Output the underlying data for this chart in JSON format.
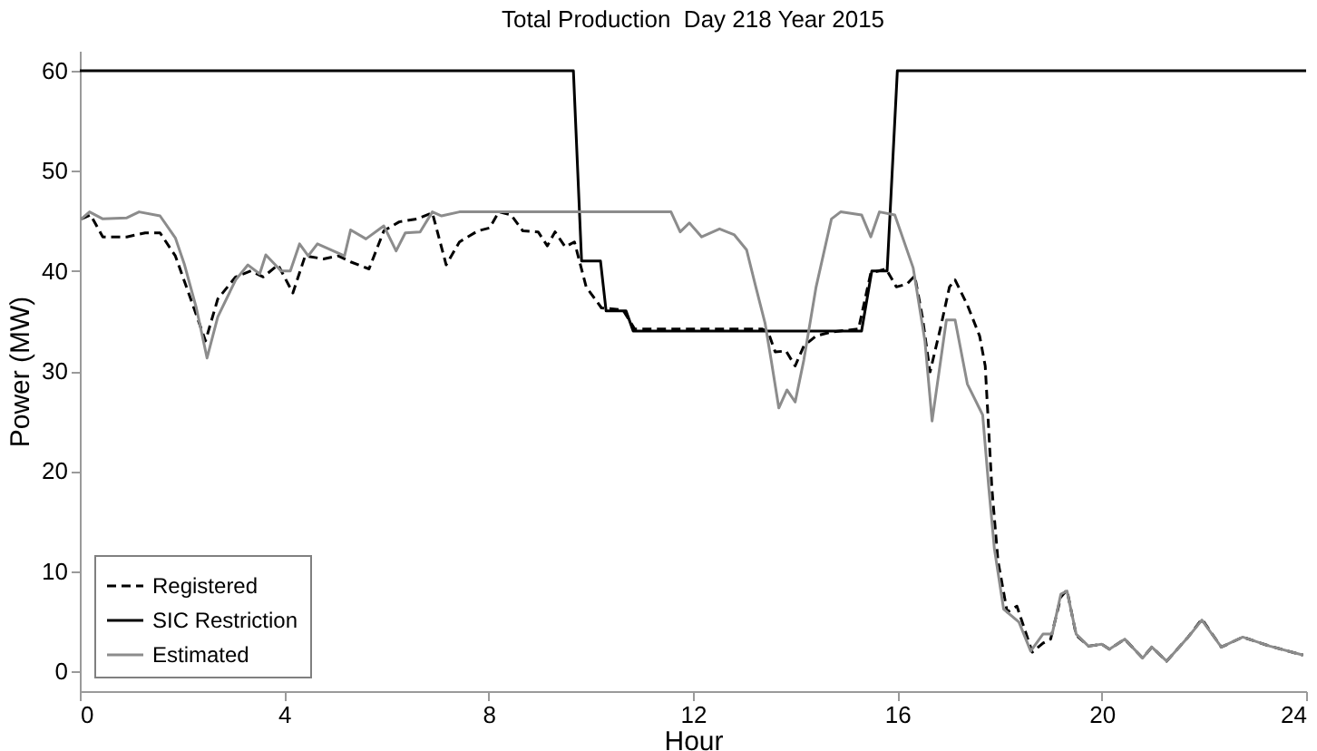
{
  "chart_data": {
    "type": "line",
    "title": "Total Production  Day 218 Year 2015",
    "xlabel": "Hour",
    "ylabel": "Power (MW)",
    "xlim": [
      0,
      24
    ],
    "ylim": [
      -2,
      62
    ],
    "xticks": [
      0,
      4,
      8,
      12,
      16,
      20,
      24
    ],
    "yticks": [
      0,
      10,
      20,
      30,
      40,
      50,
      60
    ],
    "grid": false,
    "legend": "bottom left",
    "series": [
      {
        "name": "Registered",
        "color": "#000000",
        "line_style": "dashed",
        "x": [
          0.03,
          0.21,
          0.45,
          0.92,
          1.28,
          1.57,
          1.87,
          2.17,
          2.46,
          2.7,
          3.05,
          3.35,
          3.59,
          3.88,
          4.17,
          4.41,
          4.77,
          5.06,
          5.3,
          5.66,
          5.95,
          6.25,
          6.6,
          6.9,
          7.17,
          7.43,
          7.79,
          8.02,
          8.2,
          8.44,
          8.67,
          8.97,
          9.15,
          9.3,
          9.5,
          9.68,
          9.91,
          10.21,
          10.63,
          10.86,
          11.93,
          13.35,
          13.47,
          13.61,
          13.82,
          14.0,
          14.17,
          14.41,
          14.71,
          15.24,
          15.48,
          15.78,
          15.98,
          16.19,
          16.34,
          16.49,
          16.64,
          16.84,
          17.02,
          17.13,
          17.37,
          17.61,
          17.72,
          17.85,
          17.97,
          18.15,
          18.34,
          18.64,
          18.85,
          19.0,
          19.2,
          19.32,
          19.5,
          19.74,
          20.0,
          20.15,
          20.45,
          20.8,
          20.98,
          21.27,
          21.69,
          21.96,
          22.34,
          22.76,
          23.29,
          23.94
        ],
        "values": [
          45.2,
          45.6,
          43.4,
          43.4,
          43.8,
          43.8,
          41.5,
          37.2,
          33.0,
          37.2,
          39.4,
          40.0,
          39.4,
          40.6,
          37.8,
          41.5,
          41.2,
          41.5,
          40.9,
          40.2,
          44.0,
          44.9,
          45.2,
          45.8,
          40.6,
          42.9,
          44.0,
          44.3,
          45.9,
          45.6,
          44.0,
          43.9,
          42.5,
          43.9,
          42.4,
          42.9,
          38.4,
          36.3,
          36.1,
          34.2,
          34.2,
          34.2,
          33.9,
          31.9,
          32.0,
          30.5,
          32.5,
          33.5,
          33.9,
          34.2,
          39.8,
          40.2,
          38.4,
          38.7,
          39.5,
          35.4,
          29.9,
          34.2,
          38.4,
          39.1,
          36.6,
          33.5,
          30.5,
          18.3,
          11.0,
          5.9,
          6.5,
          1.9,
          2.8,
          3.2,
          7.4,
          8.1,
          3.6,
          2.5,
          2.7,
          2.2,
          3.2,
          1.3,
          2.4,
          1.0,
          3.4,
          5.2,
          2.4,
          3.4,
          2.5,
          1.6
        ]
      },
      {
        "name": "SIC Restriction",
        "color": "#000000",
        "line_style": "solid",
        "x": [
          0,
          9.66,
          9.82,
          10.19,
          10.3,
          10.69,
          10.83,
          15.3,
          15.5,
          15.8,
          16.0,
          24
        ],
        "values": [
          60,
          60,
          41,
          41,
          36,
          36,
          34,
          34,
          40,
          40,
          60,
          60
        ]
      },
      {
        "name": "Estimated",
        "color": "#8c8c8c",
        "line_style": "solid",
        "x": [
          0.03,
          0.19,
          0.45,
          0.92,
          1.16,
          1.57,
          1.87,
          2.05,
          2.28,
          2.49,
          2.7,
          3.05,
          3.29,
          3.52,
          3.64,
          3.94,
          4.12,
          4.3,
          4.47,
          4.65,
          5.18,
          5.3,
          5.6,
          5.95,
          6.19,
          6.37,
          6.66,
          6.9,
          7.08,
          7.43,
          11.57,
          11.75,
          11.93,
          12.17,
          12.52,
          12.81,
          13.05,
          13.23,
          13.41,
          13.53,
          13.68,
          13.84,
          14.0,
          14.17,
          14.41,
          14.71,
          14.89,
          15.3,
          15.48,
          15.65,
          15.95,
          16.31,
          16.54,
          16.68,
          16.96,
          17.13,
          17.37,
          17.67,
          17.79,
          17.9,
          18.08,
          18.38,
          18.61,
          18.85,
          19.03,
          19.2,
          19.32,
          19.5,
          19.74,
          20.0,
          20.15,
          20.45,
          20.8,
          20.98,
          21.27,
          21.69,
          21.96,
          22.34,
          22.76,
          23.29,
          23.94
        ],
        "values": [
          45.2,
          45.9,
          45.2,
          45.3,
          45.9,
          45.5,
          43.3,
          40.6,
          36.3,
          31.3,
          35.4,
          39.1,
          40.6,
          39.7,
          41.6,
          40.0,
          40.0,
          42.7,
          41.5,
          42.7,
          41.5,
          44.1,
          43.2,
          44.5,
          42.0,
          43.8,
          43.9,
          45.9,
          45.5,
          45.9,
          45.9,
          43.9,
          44.8,
          43.4,
          44.2,
          43.6,
          42.1,
          38.4,
          34.8,
          31.1,
          26.3,
          28.1,
          26.9,
          31.1,
          38.4,
          45.2,
          45.9,
          45.6,
          43.4,
          45.9,
          45.6,
          40.3,
          33.0,
          25.0,
          35.1,
          35.1,
          28.7,
          25.6,
          18.3,
          12.2,
          6.2,
          4.9,
          2.0,
          3.7,
          3.7,
          7.7,
          8.0,
          3.7,
          2.5,
          2.7,
          2.2,
          3.2,
          1.3,
          2.4,
          1.0,
          3.4,
          5.1,
          2.4,
          3.4,
          2.5,
          1.6
        ]
      }
    ]
  }
}
